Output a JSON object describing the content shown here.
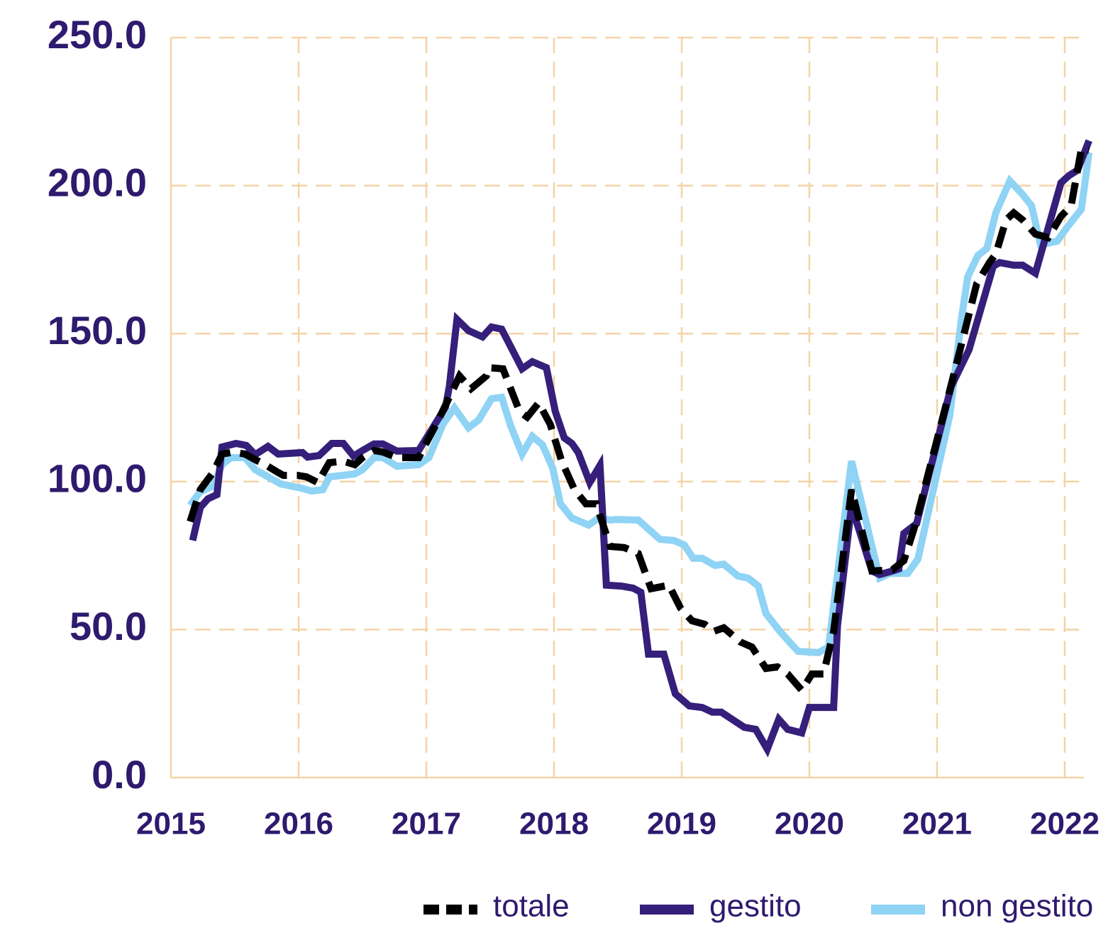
{
  "chart_data": {
    "type": "line",
    "xlim": [
      2015,
      2022.15
    ],
    "xticks": [
      2015,
      2016,
      2017,
      2018,
      2019,
      2020,
      2021,
      2022
    ],
    "ylim": [
      0,
      250
    ],
    "yticks": [
      {
        "value": 0,
        "label": "0.0"
      },
      {
        "value": 50,
        "label": "50.0"
      },
      {
        "value": 100,
        "label": "100.0"
      },
      {
        "value": 150,
        "label": "150.0"
      },
      {
        "value": 200,
        "label": "200.0"
      },
      {
        "value": 250,
        "label": "250.0"
      }
    ],
    "grid": true,
    "legend": "bottom",
    "series": [
      {
        "name": "non gestito",
        "color": "#8fd3f5",
        "style": "solid",
        "x": [
          2015.15,
          2015.23,
          2015.33,
          2015.4,
          2015.47,
          2015.58,
          2015.66,
          2015.74,
          2015.86,
          2016.02,
          2016.1,
          2016.19,
          2016.24,
          2016.44,
          2016.5,
          2016.59,
          2016.66,
          2016.77,
          2016.94,
          2017.02,
          2017.13,
          2017.22,
          2017.33,
          2017.41,
          2017.51,
          2017.59,
          2017.66,
          2017.75,
          2017.83,
          2017.91,
          2017.99,
          2018.05,
          2018.14,
          2018.27,
          2018.35,
          2018.44,
          2018.49,
          2018.66,
          2018.83,
          2018.94,
          2019.02,
          2019.09,
          2019.16,
          2019.26,
          2019.33,
          2019.44,
          2019.52,
          2019.6,
          2019.66,
          2019.77,
          2019.84,
          2019.91,
          2020.07,
          2020.15,
          2020.33,
          2020.55,
          2020.63,
          2020.77,
          2020.85,
          2021.1,
          2021.19,
          2021.24,
          2021.32,
          2021.39,
          2021.46,
          2021.57,
          2021.66,
          2021.74,
          2021.81,
          2021.94,
          2022.02,
          2022.13,
          2022.19
        ],
        "values": [
          92.0,
          96.6,
          98.5,
          105.7,
          108.1,
          108.1,
          104.0,
          102.1,
          99.2,
          97.8,
          96.8,
          97.3,
          101.6,
          102.6,
          104.0,
          108.1,
          108.1,
          105.2,
          105.7,
          108.1,
          119.4,
          124.9,
          118.2,
          120.8,
          128.0,
          128.5,
          118.9,
          109.3,
          115.3,
          112.4,
          104.5,
          92.5,
          87.7,
          85.3,
          87.7,
          87.0,
          87.2,
          87.0,
          80.5,
          80.1,
          78.6,
          74.1,
          74.1,
          71.7,
          72.1,
          68.1,
          67.4,
          64.7,
          55.4,
          49.4,
          46.0,
          42.7,
          42.2,
          44.1,
          106.9,
          67.4,
          69.0,
          69.0,
          73.8,
          122.5,
          154.8,
          169.2,
          176.4,
          178.8,
          190.8,
          201.6,
          197.5,
          193.2,
          180.0,
          181.2,
          186.0,
          192.0,
          211.2
        ]
      },
      {
        "name": "gestito",
        "color": "#351f7a",
        "style": "solid",
        "x": [
          2015.17,
          2015.23,
          2015.29,
          2015.36,
          2015.4,
          2015.51,
          2015.59,
          2015.66,
          2015.76,
          2015.84,
          2016.03,
          2016.07,
          2016.16,
          2016.26,
          2016.35,
          2016.43,
          2016.5,
          2016.59,
          2016.66,
          2016.77,
          2016.94,
          2017.15,
          2017.18,
          2017.24,
          2017.33,
          2017.44,
          2017.51,
          2017.59,
          2017.75,
          2017.83,
          2017.94,
          2018.01,
          2018.08,
          2018.14,
          2018.19,
          2018.28,
          2018.36,
          2018.41,
          2018.53,
          2018.62,
          2018.68,
          2018.74,
          2018.86,
          2018.95,
          2019.06,
          2019.16,
          2019.24,
          2019.31,
          2019.49,
          2019.58,
          2019.67,
          2019.76,
          2019.83,
          2019.94,
          2020.0,
          2020.19,
          2020.22,
          2020.33,
          2020.49,
          2020.55,
          2020.65,
          2020.7,
          2020.74,
          2020.84,
          2021.11,
          2021.25,
          2021.44,
          2021.49,
          2021.6,
          2021.67,
          2021.77,
          2021.97,
          2022.03,
          2022.1,
          2022.19
        ],
        "values": [
          80.1,
          91.3,
          94.2,
          95.6,
          111.7,
          112.9,
          112.2,
          109.1,
          111.9,
          109.3,
          109.8,
          108.3,
          108.8,
          112.9,
          112.9,
          108.6,
          110.5,
          112.7,
          112.7,
          110.3,
          110.5,
          125.1,
          132.1,
          154.8,
          151.0,
          148.9,
          152.2,
          151.5,
          138.1,
          140.5,
          138.5,
          123.7,
          114.8,
          112.9,
          109.8,
          99.7,
          105.5,
          65.0,
          64.7,
          64.0,
          62.6,
          41.7,
          41.7,
          28.3,
          24.2,
          23.7,
          22.1,
          22.1,
          17.0,
          16.3,
          9.6,
          19.7,
          16.3,
          15.1,
          23.7,
          23.7,
          51.3,
          91.8,
          69.8,
          68.6,
          69.8,
          70.5,
          82.5,
          85.8,
          132.1,
          144.5,
          172.8,
          174.0,
          173.1,
          173.1,
          170.4,
          200.9,
          203.3,
          205.2,
          215.2
        ]
      },
      {
        "name": "totale",
        "color": "#000000",
        "style": "dashed",
        "x": [
          2015.15,
          2015.23,
          2015.33,
          2015.4,
          2015.49,
          2015.58,
          2015.66,
          2015.74,
          2015.83,
          2015.88,
          2015.99,
          2016.06,
          2016.15,
          2016.24,
          2016.35,
          2016.44,
          2016.5,
          2016.59,
          2016.66,
          2016.77,
          2016.94,
          2017.1,
          2017.18,
          2017.26,
          2017.35,
          2017.47,
          2017.49,
          2017.6,
          2017.73,
          2017.79,
          2017.88,
          2017.97,
          2018.06,
          2018.16,
          2018.25,
          2018.33,
          2018.44,
          2018.55,
          2018.66,
          2018.76,
          2018.9,
          2018.99,
          2019.08,
          2019.18,
          2019.25,
          2019.33,
          2019.46,
          2019.55,
          2019.66,
          2019.75,
          2019.83,
          2019.94,
          2020.02,
          2020.11,
          2020.19,
          2020.33,
          2020.49,
          2020.65,
          2020.74,
          2020.82,
          2021.1,
          2021.31,
          2021.41,
          2021.46,
          2021.54,
          2021.6,
          2021.67,
          2021.77,
          2021.87,
          2021.97,
          2022.05,
          2022.13,
          2022.19
        ],
        "values": [
          86.5,
          97.3,
          103.1,
          109.3,
          110.0,
          109.3,
          107.4,
          105.7,
          103.3,
          102.1,
          102.1,
          101.6,
          99.7,
          106.4,
          106.9,
          105.7,
          108.1,
          110.5,
          110.0,
          108.1,
          108.1,
          121.3,
          128.5,
          135.7,
          131.4,
          135.7,
          138.5,
          138.1,
          123.7,
          121.8,
          126.6,
          119.4,
          106.9,
          97.3,
          92.5,
          92.5,
          78.1,
          77.7,
          75.7,
          63.8,
          65.0,
          57.3,
          53.0,
          51.8,
          49.4,
          50.6,
          45.8,
          44.1,
          36.9,
          37.4,
          35.0,
          29.5,
          35.0,
          35.0,
          49.4,
          97.3,
          69.8,
          70.2,
          73.3,
          84.1,
          130.9,
          166.8,
          174.0,
          176.9,
          188.4,
          190.8,
          188.4,
          183.6,
          182.4,
          189.6,
          193.2,
          212.4,
          211.9
        ]
      }
    ]
  }
}
